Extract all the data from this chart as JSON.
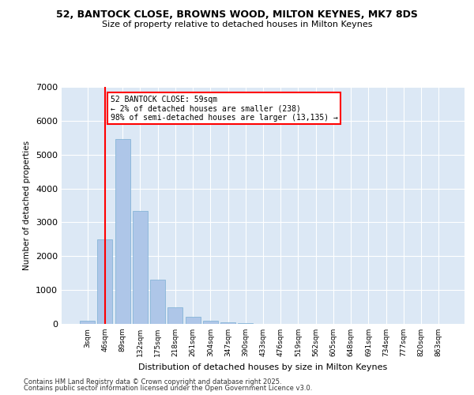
{
  "title1": "52, BANTOCK CLOSE, BROWNS WOOD, MILTON KEYNES, MK7 8DS",
  "title2": "Size of property relative to detached houses in Milton Keynes",
  "xlabel": "Distribution of detached houses by size in Milton Keynes",
  "ylabel": "Number of detached properties",
  "categories": [
    "3sqm",
    "46sqm",
    "89sqm",
    "132sqm",
    "175sqm",
    "218sqm",
    "261sqm",
    "304sqm",
    "347sqm",
    "390sqm",
    "433sqm",
    "476sqm",
    "519sqm",
    "562sqm",
    "605sqm",
    "648sqm",
    "691sqm",
    "734sqm",
    "777sqm",
    "820sqm",
    "863sqm"
  ],
  "values": [
    100,
    2500,
    5450,
    3330,
    1300,
    480,
    220,
    100,
    50,
    30,
    0,
    0,
    0,
    0,
    0,
    0,
    0,
    0,
    0,
    0,
    0
  ],
  "bar_color": "#aec6e8",
  "bar_edge_color": "#7aafd4",
  "vline_x_idx": 1,
  "vline_color": "red",
  "ylim": [
    0,
    7000
  ],
  "annotation_title": "52 BANTOCK CLOSE: 59sqm",
  "annotation_line1": "← 2% of detached houses are smaller (238)",
  "annotation_line2": "98% of semi-detached houses are larger (13,135) →",
  "annotation_box_color": "red",
  "bg_color": "#dce8f5",
  "grid_color": "#ffffff",
  "footer1": "Contains HM Land Registry data © Crown copyright and database right 2025.",
  "footer2": "Contains public sector information licensed under the Open Government Licence v3.0."
}
